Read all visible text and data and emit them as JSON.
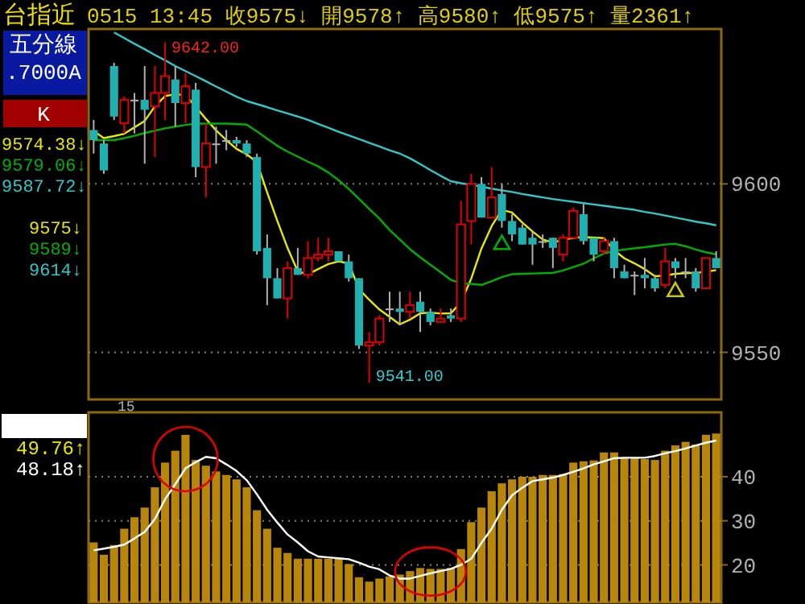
{
  "chart_data": [
    {
      "type": "candlestick",
      "title": "台指近",
      "subtitle": "0515 13:45 收9575↓ 開9578↑ 高9580↑ 低9575↑ 量2361↑",
      "categories": [
        null,
        null,
        null,
        null,
        null,
        null,
        null,
        null,
        null,
        null,
        null,
        null,
        null,
        null,
        null,
        null,
        null,
        null,
        null,
        null,
        null,
        null,
        null,
        null,
        null,
        null,
        null,
        null,
        null,
        null,
        null,
        null,
        null,
        null,
        null,
        null,
        null,
        null,
        null,
        null,
        null,
        null,
        null,
        null,
        null,
        null,
        null,
        null,
        null,
        null,
        null,
        null,
        null,
        null,
        null,
        null,
        null,
        null,
        null,
        null,
        null,
        null
      ],
      "ohlc": [
        [
          9616,
          9619,
          9609,
          9613
        ],
        [
          9612,
          9613,
          9603,
          9604
        ],
        [
          9635,
          9636,
          9619,
          9620
        ],
        [
          9618,
          9626,
          9615,
          9625
        ],
        [
          9625,
          9627,
          9615,
          9625
        ],
        [
          9625,
          9635,
          9606,
          9622
        ],
        [
          9623,
          9635,
          9608,
          9627
        ],
        [
          9627,
          9642,
          9619,
          9632
        ],
        [
          9631,
          9635,
          9617,
          9624
        ],
        [
          9624,
          9633,
          9618,
          9629
        ],
        [
          9628,
          9630,
          9602,
          9605
        ],
        [
          9605,
          9618,
          9596,
          9612
        ],
        [
          9612,
          9617,
          9606,
          9612
        ],
        [
          9613,
          9616,
          9610,
          9613
        ],
        [
          9613,
          9614,
          9611,
          9612
        ],
        [
          9612,
          9613,
          9608,
          9609
        ],
        [
          9608,
          9609,
          9579,
          9580
        ],
        [
          9581,
          9585,
          9564,
          9572
        ],
        [
          9572,
          9575,
          9566,
          9566
        ],
        [
          9566,
          9577,
          9560,
          9575
        ],
        [
          9575,
          9581,
          9573,
          9573
        ],
        [
          9573,
          9583,
          9572,
          9578
        ],
        [
          9578,
          9584,
          9577,
          9579
        ],
        [
          9579,
          9584,
          9577,
          9580
        ],
        [
          9580,
          9580,
          9577,
          9577
        ],
        [
          9577,
          9579,
          9571,
          9572
        ],
        [
          9572,
          9572,
          9551,
          9552
        ],
        [
          9552,
          9556,
          9541,
          9553
        ],
        [
          9553,
          9561,
          9552,
          9560
        ],
        [
          9563,
          9568,
          9559,
          9563
        ],
        [
          9563,
          9568,
          9558,
          9562
        ],
        [
          9562,
          9568,
          9560,
          9564
        ],
        [
          9565,
          9568,
          9556,
          9562
        ],
        [
          9562,
          9563,
          9558,
          9559
        ],
        [
          9559,
          9563,
          9559,
          9560
        ],
        [
          9561,
          9563,
          9559,
          9560
        ],
        [
          9560,
          9595,
          9559,
          9588
        ],
        [
          9589,
          9603,
          9582,
          9600
        ],
        [
          9600,
          9602,
          9590,
          9590
        ],
        [
          9590,
          9605,
          9590,
          9596
        ],
        [
          9597,
          9600,
          9587,
          9589
        ],
        [
          9589,
          9591,
          9583,
          9585
        ],
        [
          9587,
          9588,
          9582,
          9582
        ],
        [
          9584,
          9586,
          9576,
          9582
        ],
        [
          9583,
          9585,
          9581,
          9583
        ],
        [
          9584,
          9584,
          9575,
          9581
        ],
        [
          9579,
          9585,
          9577,
          9584
        ],
        [
          9584,
          9593,
          9584,
          9592
        ],
        [
          9591,
          9594,
          9582,
          9583
        ],
        [
          9584,
          9584,
          9577,
          9579
        ],
        [
          9580,
          9584,
          9579,
          9583
        ],
        [
          9583,
          9584,
          9572,
          9575
        ],
        [
          9574,
          9576,
          9572,
          9572
        ],
        [
          9573,
          9574,
          9567,
          9573
        ],
        [
          9573,
          9578,
          9569,
          9572
        ],
        [
          9572,
          9573,
          9568,
          9569
        ],
        [
          9570,
          9581,
          9569,
          9577
        ],
        [
          9577,
          9578,
          9572,
          9575
        ],
        [
          9574,
          9578,
          9572,
          9574
        ],
        [
          9574,
          9575,
          9568,
          9569
        ],
        [
          9569,
          9578,
          9569,
          9578
        ],
        [
          9578,
          9580,
          9575,
          9575
        ]
      ],
      "series": [
        {
          "type": "line",
          "color": "#e8e800",
          "values": [
            9615.7,
            9613.6,
            9614.2,
            9614.9,
            9616.8,
            9618.7,
            9623,
            9626.1,
            9626.6,
            9626.4,
            9622.9,
            9619.3,
            9615.9,
            9613,
            9610.4,
            9608.8,
            9606.4,
            9597.5,
            9589,
            9581,
            9574,
            9573.2,
            9574.7,
            9576.2,
            9577,
            9576.4,
            9568.8,
            9565.6,
            9562.7,
            9560.5,
            9558.3,
            9559.7,
            9561.6,
            9561.8,
            9561.5,
            9561.6,
            9564.8,
            9571.9,
            9580.8,
            9587.5,
            9592.3,
            9591.5,
            9588.5,
            9585.9,
            9583.5,
            9582.6,
            9583.4,
            9584,
            9584.2,
            9584.1,
            9583.9,
            9580.3,
            9577.9,
            9576.4,
            9574.7,
            9572.6,
            9572.8,
            9573.3,
            9573.5,
            9573.6,
            9573.9,
            9574.4
          ]
        },
        {
          "type": "line",
          "color": "#00b000",
          "values": [
            9613,
            9613,
            9613,
            9613.6,
            9614.3,
            9615.1,
            9615.8,
            9616.5,
            9617,
            9617.5,
            9617.9,
            9617.9,
            9617.9,
            9617.9,
            9617.8,
            9617.6,
            9615.6,
            9613.4,
            9611.3,
            9609.6,
            9608.1,
            9606.6,
            9605.2,
            9603.4,
            9601.1,
            9598.5,
            9595.6,
            9592.6,
            9589.7,
            9586.3,
            9583.5,
            9580.6,
            9578.2,
            9576,
            9573.8,
            9571.5,
            9570.5,
            9570.3,
            9570,
            9571.1,
            9572.3,
            9573.2,
            9573.3,
            9573.4,
            9573.5,
            9573.6,
            9574.3,
            9575.3,
            9576.3,
            9577.9,
            9579.3,
            9580.1,
            9580.5,
            9580.9,
            9581.2,
            9581.6,
            9582,
            9582.2,
            9581.5,
            9580.5,
            9579.7,
            9579.1
          ]
        },
        {
          "type": "line",
          "color": "#30c8c8",
          "values": [
            null,
            null,
            9645,
            9643.3,
            9641.6,
            9640,
            9638.3,
            9636.7,
            9635,
            9633.5,
            9632,
            9630.5,
            9628.9,
            9627.4,
            9625.9,
            9624.6,
            9623.7,
            9622.8,
            9621.8,
            9620.9,
            9620,
            9619,
            9617.8,
            9616.7,
            9615.5,
            9614.4,
            9613.3,
            9612.2,
            9611.1,
            9610,
            9609,
            9607.6,
            9605.9,
            9604.1,
            9602.4,
            9600.8,
            9600.2,
            9599.7,
            9599.2,
            9598.6,
            9598.1,
            9597.6,
            9597,
            9596.5,
            9596,
            9595.5,
            9595.1,
            9594.7,
            9594.3,
            9593.9,
            9593.5,
            9593.1,
            9592.7,
            9592.3,
            9591.7,
            9591.2,
            9590.6,
            9590,
            9589.4,
            9588.8,
            9588.3,
            9587.7
          ]
        },
        {
          "type": "scatter",
          "marker": "triangle",
          "color": "#00b000",
          "values": [
            null,
            null,
            null,
            null,
            null,
            null,
            null,
            null,
            null,
            null,
            null,
            null,
            null,
            null,
            null,
            null,
            null,
            null,
            null,
            null,
            null,
            null,
            null,
            null,
            null,
            null,
            null,
            null,
            null,
            null,
            null,
            null,
            null,
            null,
            null,
            null,
            null,
            null,
            null,
            null,
            9582,
            null,
            null,
            null,
            null,
            null,
            null,
            null,
            null,
            null,
            null,
            null,
            null,
            null,
            null,
            null,
            null,
            null,
            null,
            null,
            null,
            null
          ]
        },
        {
          "type": "scatter",
          "marker": "triangle",
          "color": "#c8c800",
          "values": [
            null,
            null,
            null,
            null,
            null,
            null,
            null,
            null,
            null,
            null,
            null,
            null,
            null,
            null,
            null,
            null,
            null,
            null,
            null,
            null,
            null,
            null,
            null,
            null,
            null,
            null,
            null,
            null,
            null,
            null,
            null,
            null,
            null,
            null,
            null,
            null,
            null,
            null,
            null,
            null,
            null,
            null,
            null,
            null,
            null,
            null,
            null,
            null,
            null,
            null,
            null,
            null,
            null,
            null,
            null,
            null,
            null,
            9568,
            null,
            null,
            null,
            null
          ]
        }
      ],
      "ylim": [
        9536,
        9646
      ],
      "yticks": [
        9550,
        9600
      ],
      "grid": "y",
      "tick_labels": "y",
      "annotations": [
        "五分線",
        ".7000A",
        "K",
        "9574.38↓",
        "9579.06↓",
        "9587.72↓",
        "9575↓",
        "9589↓",
        "9614↓",
        "9642.00",
        "9541.00"
      ]
    },
    {
      "type": "bar",
      "categories": [
        null,
        null,
        null,
        null,
        null,
        null,
        null,
        null,
        null,
        null,
        null,
        null,
        null,
        null,
        null,
        null,
        null,
        null,
        null,
        null,
        null,
        null,
        null,
        null,
        null,
        null,
        null,
        null,
        null,
        null,
        null,
        null,
        null,
        null,
        null,
        null,
        null,
        null,
        null,
        null,
        null,
        null,
        null,
        null,
        null,
        null,
        null,
        null,
        null,
        null,
        null,
        null,
        null,
        null,
        null,
        null,
        null,
        null,
        null,
        null,
        null,
        null
      ],
      "series": [
        {
          "type": "bar",
          "color": "#b8860b",
          "values": [
            25.1,
            22.3,
            24.5,
            28.2,
            30.8,
            33,
            37.6,
            43.2,
            45.9,
            49.5,
            43.8,
            42.5,
            41.2,
            40.4,
            39.4,
            37.6,
            32.4,
            28.2,
            23.9,
            22.7,
            21.4,
            21.4,
            21.4,
            21.4,
            21.4,
            20.2,
            17.2,
            16.2,
            16.9,
            17.4,
            17.8,
            18.6,
            19.3,
            19.1,
            19.1,
            19.3,
            23.6,
            29.7,
            33,
            36.7,
            38.5,
            39.4,
            40,
            40,
            40.4,
            40.4,
            40.6,
            43.2,
            43.5,
            43.7,
            45.5,
            45.5,
            44.4,
            44.3,
            44,
            43.8,
            45.9,
            47.1,
            47.9,
            47.3,
            49.5,
            49.8
          ]
        },
        {
          "type": "line",
          "color": "#ffffff",
          "values": [
            23.3,
            23.7,
            24.1,
            24.6,
            26,
            27.5,
            30.4,
            34.9,
            38.3,
            41.9,
            43.3,
            44.5,
            44.2,
            42.8,
            41.3,
            39.2,
            36,
            32.5,
            29.6,
            26.9,
            25.1,
            23.1,
            21.9,
            21.7,
            21.5,
            21.3,
            20.5,
            19.6,
            19,
            17.6,
            16.9,
            16.9,
            17.5,
            18.1,
            18.6,
            19.1,
            20,
            21.4,
            25,
            28.2,
            32.5,
            35.8,
            37.5,
            39,
            39.4,
            39.8,
            40.4,
            41.1,
            41.9,
            42.8,
            43.5,
            44.2,
            44.3,
            44.3,
            44.3,
            44.7,
            45.3,
            45.8,
            46.4,
            47.1,
            47.7,
            48.2
          ]
        }
      ],
      "ylim": [
        11.5,
        54.6
      ],
      "yticks": [
        20,
        30,
        40
      ],
      "grid": "y",
      "tick_labels": "y",
      "annotations": [
        "15",
        "49.76↑",
        "48.18↑"
      ]
    }
  ]
}
